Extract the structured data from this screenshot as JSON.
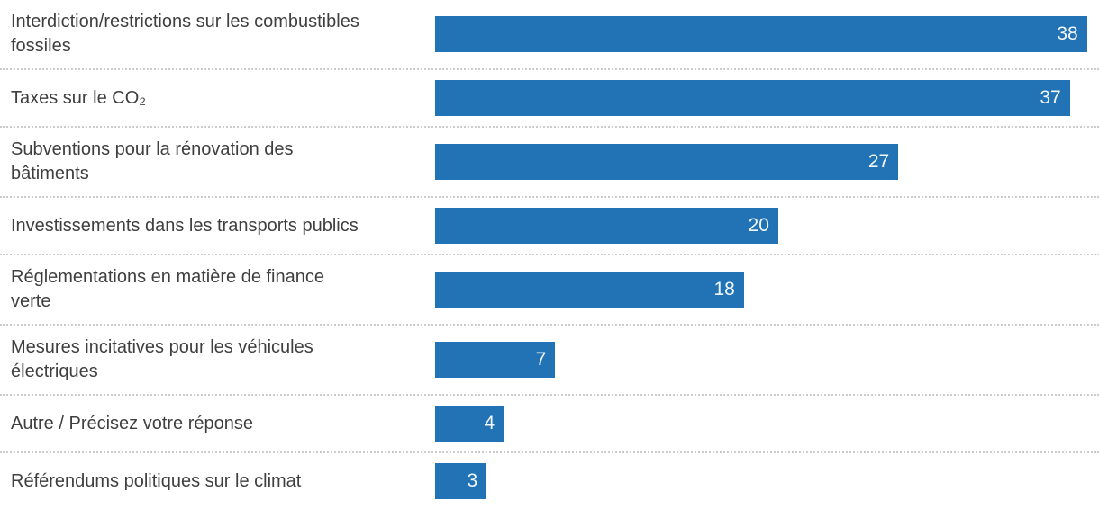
{
  "chart_data": {
    "type": "bar",
    "orientation": "horizontal",
    "title": "",
    "xlabel": "",
    "ylabel": "",
    "categories": [
      "Interdiction/restrictions sur les combustibles fossiles",
      "Taxes sur le CO₂",
      "Subventions pour la rénovation des bâtiments",
      "Investissements dans les transports publics",
      "Réglementations en matière de finance verte",
      "Mesures incitatives pour les véhicules électriques",
      "Autre / Précisez votre réponse",
      "Référendums politiques sur le climat"
    ],
    "values": [
      38,
      37,
      27,
      20,
      18,
      7,
      4,
      3
    ],
    "value_labels_shown": true,
    "value_label_position": "inside-end",
    "xlim": [
      0,
      38.7
    ],
    "grid": false,
    "legend": false,
    "axes_shown": false,
    "separator_style": "dotted",
    "colors": {
      "bar": "#2273b6",
      "value_text": "#ffffff",
      "category_text": "#3f3f3f",
      "separator": "#cccccc",
      "background": "#ffffff"
    }
  }
}
